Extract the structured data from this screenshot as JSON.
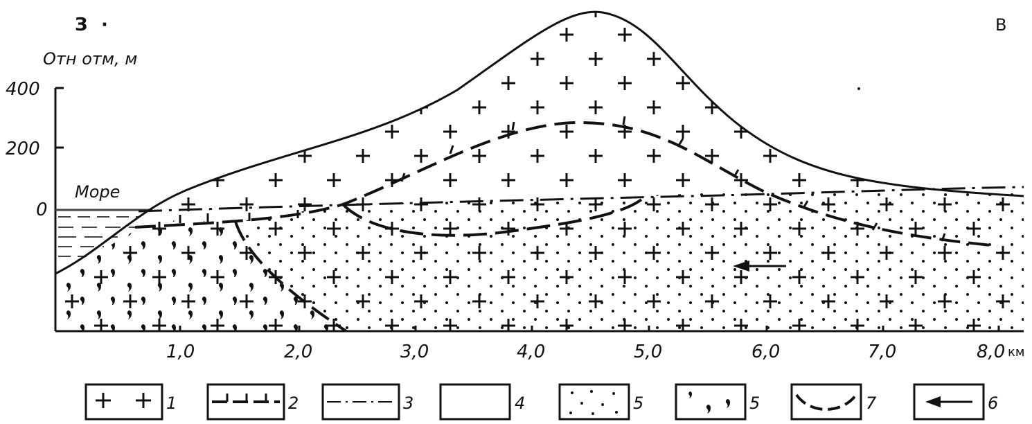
{
  "corner_left": "З",
  "corner_right": "В",
  "y_axis": {
    "title": "Отн отм, м",
    "ticks": [
      "400",
      "200",
      "0"
    ]
  },
  "x_axis": {
    "ticks": [
      "1,0",
      "2,0",
      "3,0",
      "4,0",
      "5,0",
      "6,0",
      "7,0",
      "8,0"
    ],
    "unit": "км"
  },
  "sea_label": "Море",
  "legend": [
    {
      "number": "1",
      "pattern": "crosses"
    },
    {
      "number": "2",
      "pattern": "dashed-line-with-ticks"
    },
    {
      "number": "3",
      "pattern": "dash-dot-line"
    },
    {
      "number": "4",
      "pattern": "blank"
    },
    {
      "number": "5",
      "pattern": "dots"
    },
    {
      "number": "5",
      "pattern": "commas"
    },
    {
      "number": "7",
      "pattern": "curved-dashed-line"
    },
    {
      "number": "6",
      "pattern": "arrow-left"
    }
  ]
}
